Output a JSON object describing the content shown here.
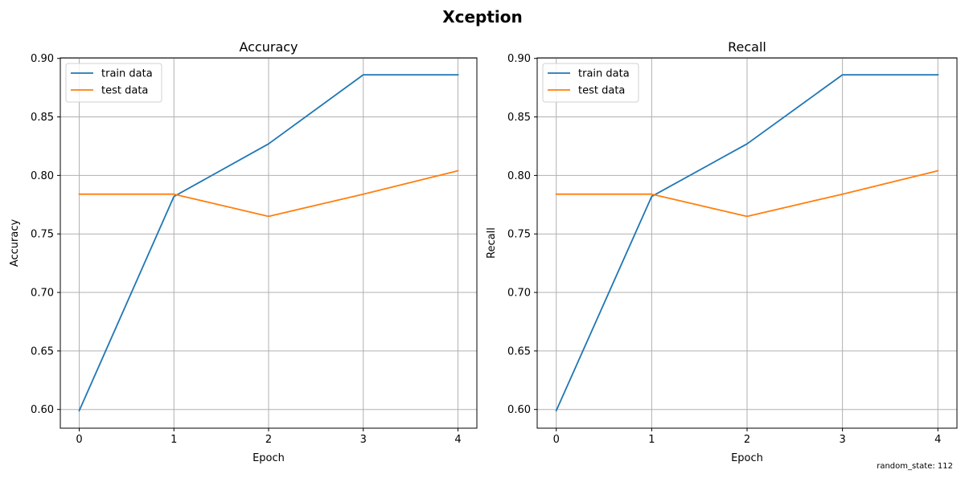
{
  "figure": {
    "title": "Xception",
    "footnote": "random_state: 112"
  },
  "chart_data": [
    {
      "type": "line",
      "title": "Accuracy",
      "xlabel": "Epoch",
      "ylabel": "Accuracy",
      "x": [
        0,
        1,
        2,
        3,
        4
      ],
      "xticks": [
        "0",
        "1",
        "2",
        "3",
        "4"
      ],
      "yticks": [
        "0.60",
        "0.65",
        "0.70",
        "0.75",
        "0.80",
        "0.85",
        "0.90"
      ],
      "xlim": [
        -0.2,
        4.2
      ],
      "ylim": [
        0.584,
        0.9005
      ],
      "grid": true,
      "legend_position": "upper-left",
      "series": [
        {
          "name": "train data",
          "color": "#1f77b4",
          "values": [
            0.599,
            0.782,
            0.827,
            0.886,
            0.886
          ]
        },
        {
          "name": "test data",
          "color": "#ff7f0e",
          "values": [
            0.784,
            0.784,
            0.765,
            0.784,
            0.804
          ]
        }
      ]
    },
    {
      "type": "line",
      "title": "Recall",
      "xlabel": "Epoch",
      "ylabel": "Recall",
      "x": [
        0,
        1,
        2,
        3,
        4
      ],
      "xticks": [
        "0",
        "1",
        "2",
        "3",
        "4"
      ],
      "yticks": [
        "0.60",
        "0.65",
        "0.70",
        "0.75",
        "0.80",
        "0.85",
        "0.90"
      ],
      "xlim": [
        -0.2,
        4.2
      ],
      "ylim": [
        0.584,
        0.9005
      ],
      "grid": true,
      "legend_position": "upper-left",
      "series": [
        {
          "name": "train data",
          "color": "#1f77b4",
          "values": [
            0.599,
            0.782,
            0.827,
            0.886,
            0.886
          ]
        },
        {
          "name": "test data",
          "color": "#ff7f0e",
          "values": [
            0.784,
            0.784,
            0.765,
            0.784,
            0.804
          ]
        }
      ]
    }
  ]
}
